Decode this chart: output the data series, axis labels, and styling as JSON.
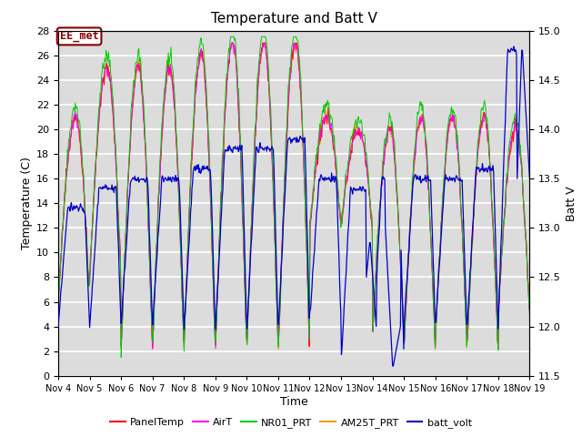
{
  "title": "Temperature and Batt V",
  "xlabel": "Time",
  "ylabel_left": "Temperature (C)",
  "ylabel_right": "Batt V",
  "ylim_left": [
    0,
    28
  ],
  "ylim_right": [
    11.5,
    15.0
  ],
  "yticks_left": [
    0,
    2,
    4,
    6,
    8,
    10,
    12,
    14,
    16,
    18,
    20,
    22,
    24,
    26,
    28
  ],
  "yticks_right": [
    11.5,
    12.0,
    12.5,
    13.0,
    13.5,
    14.0,
    14.5,
    15.0
  ],
  "xtick_labels": [
    "Nov 4",
    "Nov 5",
    "Nov 6",
    "Nov 7",
    "Nov 8",
    "Nov 9",
    "Nov 10",
    "Nov 11",
    "Nov 12",
    "Nov 13",
    "Nov 14",
    "Nov 15",
    "Nov 16",
    "Nov 17",
    "Nov 18",
    "Nov 19"
  ],
  "annotation_text": "EE_met",
  "annotation_color": "#8B0000",
  "background_color": "#dcdcdc",
  "grid_color": "white",
  "series_colors": {
    "PanelTemp": "#ff0000",
    "AirT": "#ff00ff",
    "NR01_PRT": "#00cc00",
    "AM25T_PRT": "#ff9900",
    "batt_volt": "#0000cc"
  },
  "legend_labels": [
    "PanelTemp",
    "AirT",
    "NR01_PRT",
    "AM25T_PRT",
    "batt_volt"
  ],
  "figsize": [
    6.4,
    4.8
  ],
  "dpi": 100
}
